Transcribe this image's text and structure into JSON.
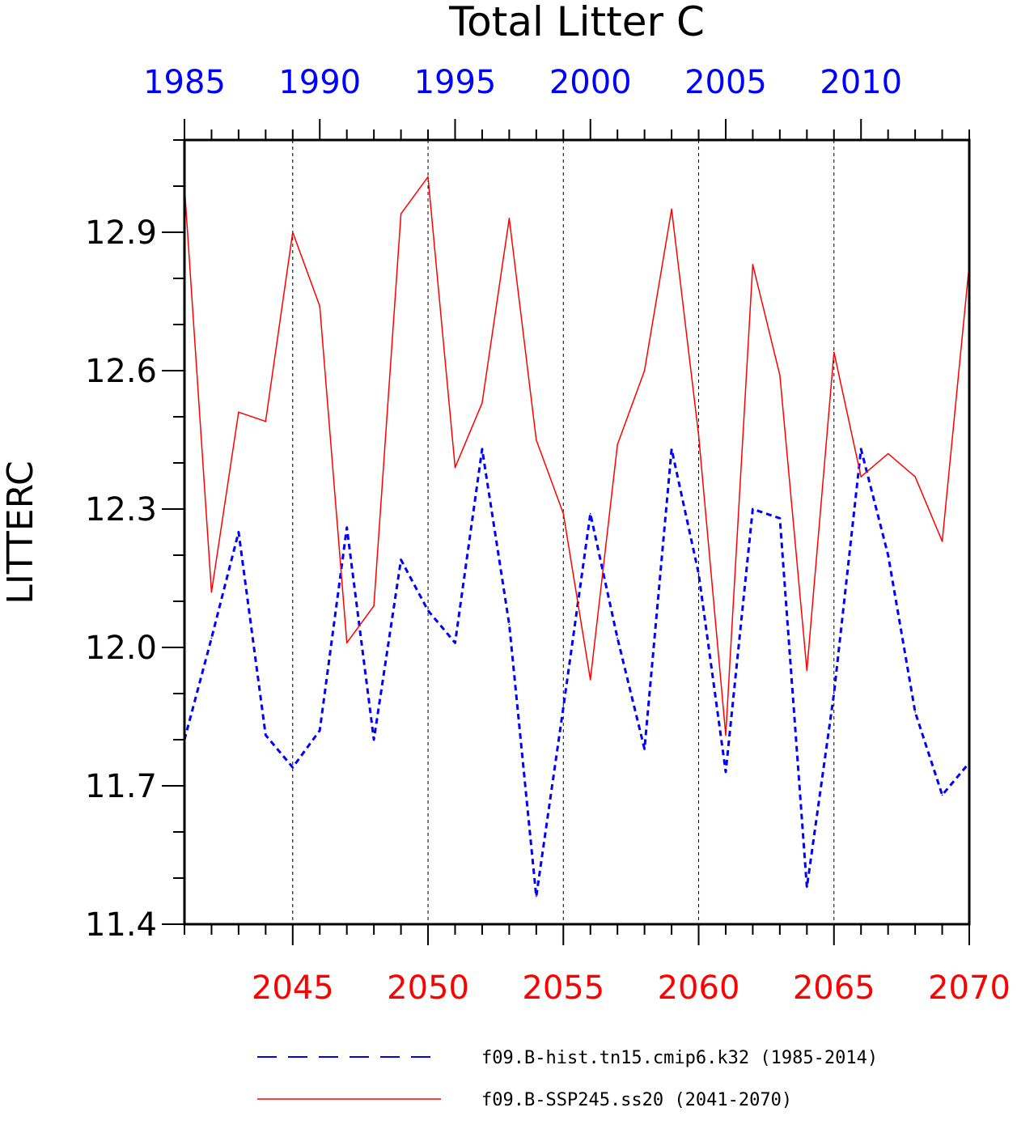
{
  "chart_data": {
    "type": "line",
    "title": "Total Litter C",
    "ylabel": "LITTERC",
    "ylim": [
      11.4,
      13.1
    ],
    "y_ticks": [
      "11.4",
      "11.7",
      "12.0",
      "12.3",
      "12.6",
      "12.9"
    ],
    "top_axis": {
      "range": [
        1985,
        2014
      ],
      "ticks": [
        "1985",
        "1990",
        "1995",
        "2000",
        "2005",
        "2010"
      ],
      "color": "#0000ff"
    },
    "bottom_axis": {
      "range": [
        2041,
        2070
      ],
      "ticks": [
        "2045",
        "2050",
        "2055",
        "2060",
        "2065",
        "2070"
      ],
      "color": "#ff0000"
    },
    "grid": "dotted vertical lines at every 5 years",
    "legend_position": "bottom",
    "series": [
      {
        "name": "f09.B-hist.tn15.cmip6.k32 (1985-2014)",
        "color": "#0000ff",
        "style": "dashed",
        "x": [
          1985,
          1986,
          1987,
          1988,
          1989,
          1990,
          1991,
          1992,
          1993,
          1994,
          1995,
          1996,
          1997,
          1998,
          1999,
          2000,
          2001,
          2002,
          2003,
          2004,
          2005,
          2006,
          2007,
          2008,
          2009,
          2010,
          2011,
          2012,
          2013,
          2014
        ],
        "values": [
          11.8,
          12.02,
          12.25,
          11.81,
          11.74,
          11.82,
          12.26,
          11.8,
          12.19,
          12.08,
          12.01,
          12.43,
          12.05,
          11.46,
          11.87,
          12.29,
          12.02,
          11.78,
          12.43,
          12.16,
          11.73,
          12.3,
          12.28,
          11.48,
          11.9,
          12.43,
          12.2,
          11.86,
          11.68,
          11.75
        ]
      },
      {
        "name": "f09.B-SSP245.ss20 (2041-2070)",
        "color": "#ff0000",
        "style": "solid",
        "x": [
          2041,
          2042,
          2043,
          2044,
          2045,
          2046,
          2047,
          2048,
          2049,
          2050,
          2051,
          2052,
          2053,
          2054,
          2055,
          2056,
          2057,
          2058,
          2059,
          2060,
          2061,
          2062,
          2063,
          2064,
          2065,
          2066,
          2067,
          2068,
          2069,
          2070
        ],
        "values": [
          13.0,
          12.12,
          12.51,
          12.49,
          12.9,
          12.74,
          12.01,
          12.09,
          12.94,
          13.02,
          12.39,
          12.53,
          12.93,
          12.45,
          12.29,
          11.93,
          12.44,
          12.6,
          12.95,
          12.46,
          11.81,
          12.83,
          12.59,
          11.95,
          12.64,
          12.37,
          12.42,
          12.37,
          12.23,
          12.83
        ]
      }
    ]
  }
}
